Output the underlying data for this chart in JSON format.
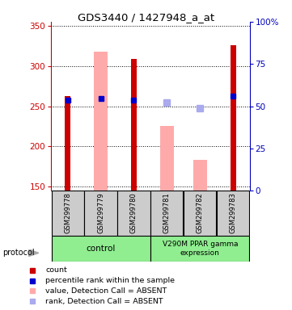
{
  "title": "GDS3440 / 1427948_a_at",
  "samples": [
    "GSM299778",
    "GSM299779",
    "GSM299780",
    "GSM299781",
    "GSM299782",
    "GSM299783"
  ],
  "red_bars": [
    263,
    null,
    309,
    null,
    null,
    326
  ],
  "pink_bars": [
    null,
    318,
    null,
    225,
    183,
    null
  ],
  "blue_squares": [
    258,
    260,
    258,
    null,
    null,
    263
  ],
  "lavender_squares": [
    null,
    null,
    null,
    255,
    248,
    null
  ],
  "ymin": 145,
  "ymax": 355,
  "yticks_left": [
    150,
    200,
    250,
    300,
    350
  ],
  "yticks_right": [
    0,
    25,
    50,
    75,
    100
  ],
  "yright_min": 0,
  "yright_max": 100,
  "red_color": "#cc0000",
  "pink_color": "#ffaaaa",
  "blue_color": "#0000cc",
  "lavender_color": "#aaaaee",
  "bg_color": "#ffffff",
  "left_axis_color": "#cc0000",
  "right_axis_color": "#0000bb",
  "green_color": "#90ee90",
  "gray_color": "#cccccc",
  "legend_items": [
    "count",
    "percentile rank within the sample",
    "value, Detection Call = ABSENT",
    "rank, Detection Call = ABSENT"
  ]
}
